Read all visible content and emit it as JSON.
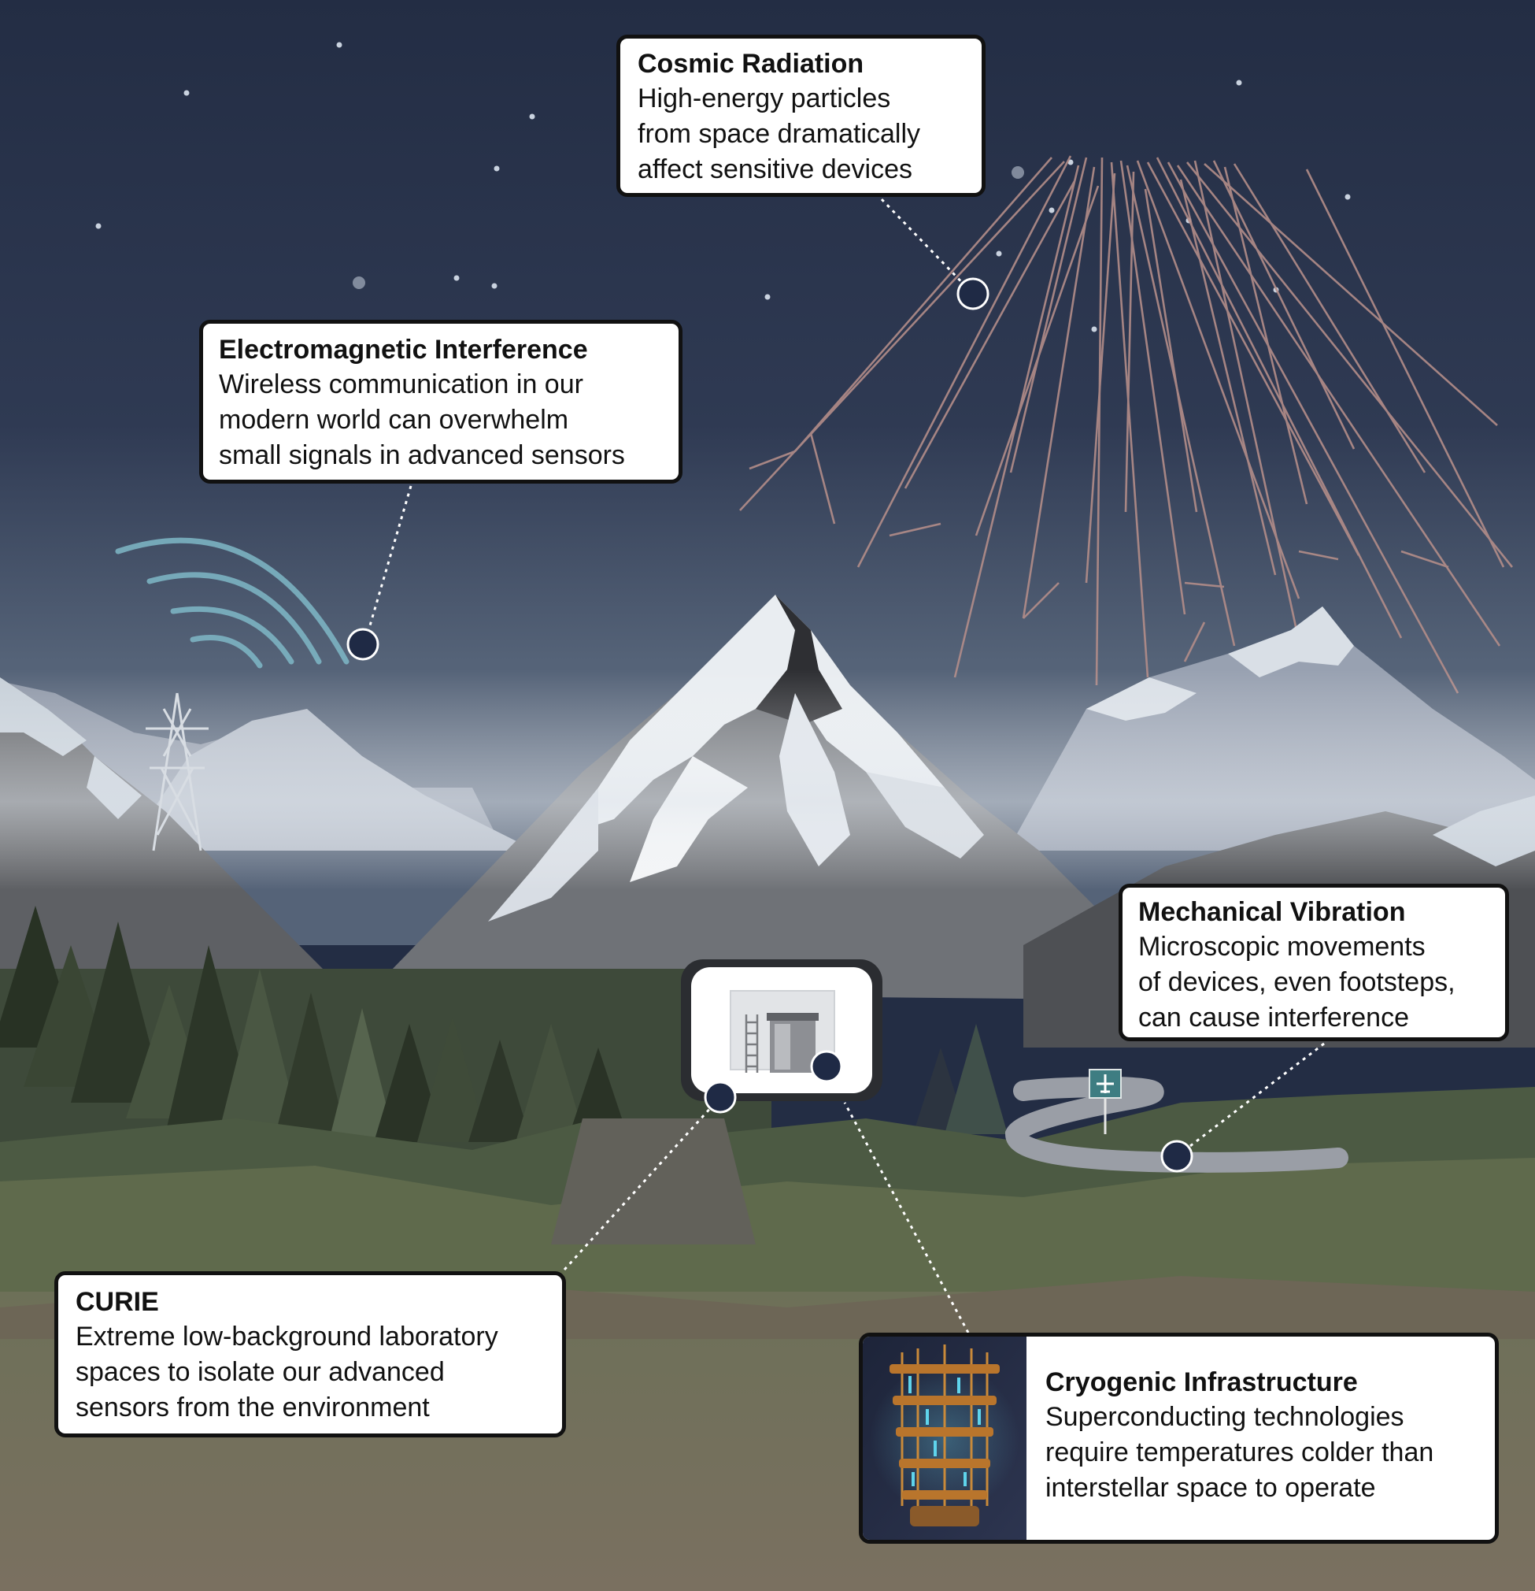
{
  "callouts": {
    "cosmic": {
      "title": "Cosmic Radiation",
      "lines": [
        "High-energy particles",
        "from space dramatically",
        "affect sensitive devices"
      ]
    },
    "emi": {
      "title": "Electromagnetic Interference",
      "lines": [
        "Wireless communication in our",
        "modern world can overwhelm",
        "small signals in advanced sensors"
      ]
    },
    "mech": {
      "title": "Mechanical Vibration",
      "lines": [
        "Microscopic movements",
        "of devices, even footsteps,",
        "can cause interference"
      ]
    },
    "curie": {
      "title": "CURIE",
      "lines": [
        "Extreme low-background laboratory",
        "spaces to isolate our advanced",
        "sensors from the environment"
      ]
    },
    "cryo": {
      "title": "Cryogenic Infrastructure",
      "lines": [
        "Superconducting technologies",
        "require temperatures colder than",
        "interstellar space to operate"
      ]
    }
  },
  "colors": {
    "sky_top": "#232d44",
    "sky_bottom": "#556378",
    "marker": "#1f2a45",
    "cosmic_ray": "#b38d89",
    "wifi_wave": "#7fb8c7",
    "ground": "#7a7060",
    "grass": "#5f6a4c"
  },
  "icons": [
    "power-tower-icon",
    "wifi-waves-icon",
    "airplane-sign-icon",
    "ladder-icon",
    "cryostat-icon"
  ]
}
